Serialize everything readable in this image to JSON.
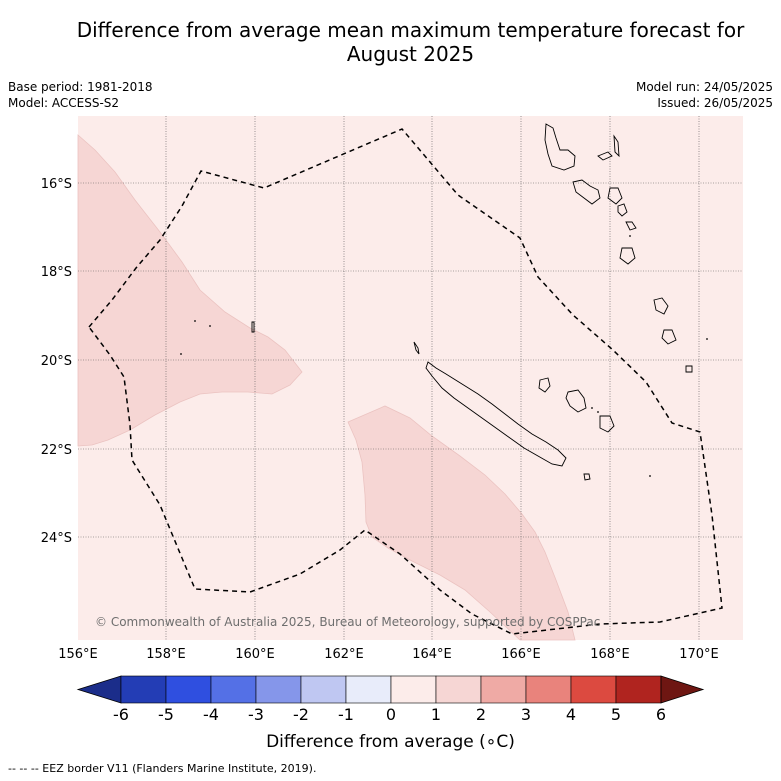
{
  "title_line1": "Difference from average mean maximum temperature forecast for",
  "title_line2": "August 2025",
  "base_period": "Base period: 1981-2018",
  "model": "Model: ACCESS-S2",
  "model_run": "Model run: 24/05/2025",
  "issued": "Issued: 26/05/2025",
  "copyright": "© Commonwealth of Australia 2025, Bureau of Meteorology, supported by COSPPac",
  "lon_labels": [
    "156°E",
    "158°E",
    "160°E",
    "162°E",
    "164°E",
    "166°E",
    "168°E",
    "170°E"
  ],
  "lat_labels": [
    "16°S",
    "18°S",
    "20°S",
    "22°S",
    "24°S"
  ],
  "colorbar": {
    "title": "Difference from average (∘C)",
    "ticks": [
      "-6",
      "-5",
      "-4",
      "-3",
      "-2",
      "-1",
      "0",
      "1",
      "2",
      "3",
      "4",
      "5",
      "6"
    ],
    "colors": [
      "#1b2d8a",
      "#233db5",
      "#2f4fe0",
      "#5470e6",
      "#8596ea",
      "#bfc7f2",
      "#e8ecfa",
      "#fcecea",
      "#f6d6d4",
      "#efaaa5",
      "#e9837c",
      "#dc4a40",
      "#b0241f",
      "#6e1612"
    ]
  },
  "legend_note": "--  --  -- EEZ border V11 (Flanders Marine Institute, 2019).",
  "colors": {
    "background_anomaly": "#fcecea",
    "anomaly_1_2": "#f6d6d4"
  }
}
